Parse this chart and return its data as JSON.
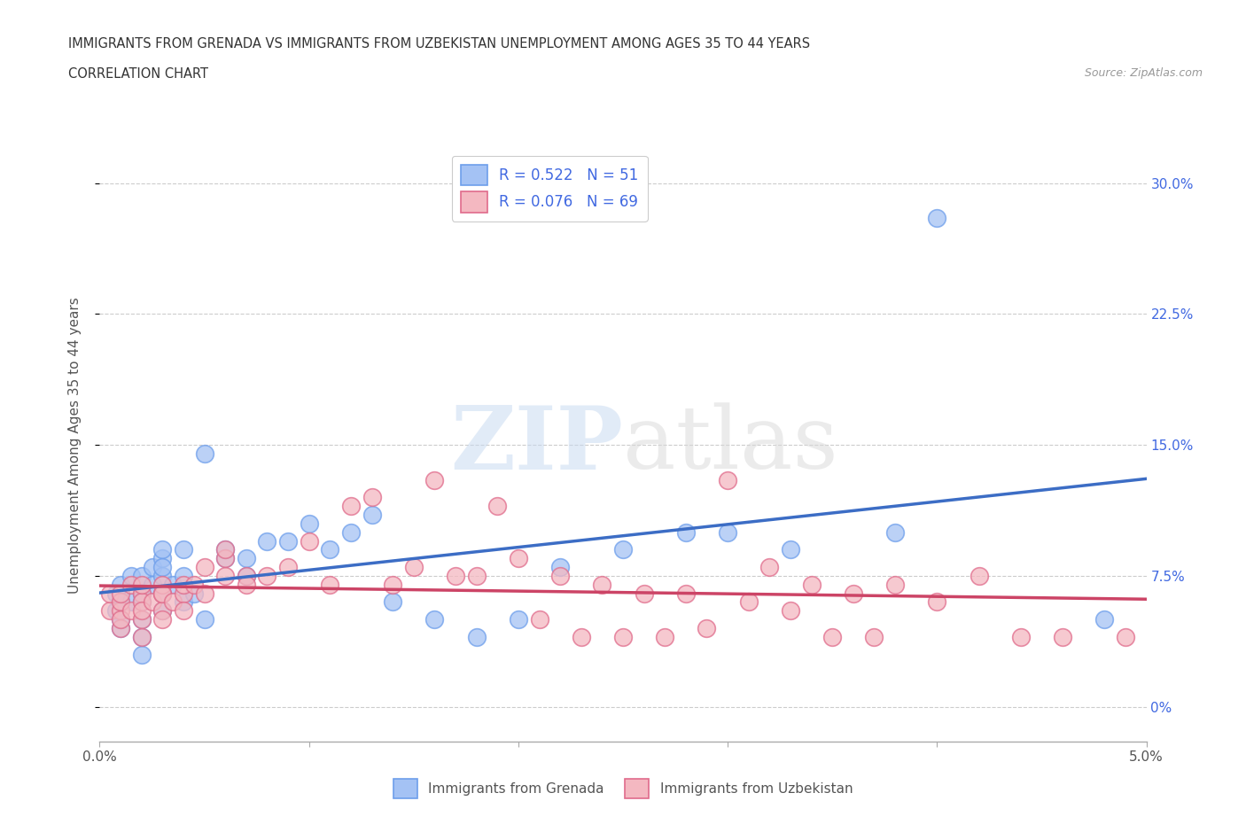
{
  "title_line1": "IMMIGRANTS FROM GRENADA VS IMMIGRANTS FROM UZBEKISTAN UNEMPLOYMENT AMONG AGES 35 TO 44 YEARS",
  "title_line2": "CORRELATION CHART",
  "source_text": "Source: ZipAtlas.com",
  "ylabel": "Unemployment Among Ages 35 to 44 years",
  "xlim": [
    0.0,
    0.05
  ],
  "ylim": [
    -0.02,
    0.32
  ],
  "ytick_vals": [
    0.0,
    0.075,
    0.15,
    0.225,
    0.3
  ],
  "ytick_labels_right": [
    "0%",
    "7.5%",
    "15.0%",
    "22.5%",
    "30.0%"
  ],
  "xtick_vals": [
    0.0,
    0.01,
    0.02,
    0.03,
    0.04,
    0.05
  ],
  "xtick_labels": [
    "0.0%",
    "",
    "",
    "",
    "",
    "5.0%"
  ],
  "grenada_color": "#a4c2f4",
  "uzbekistan_color": "#f4b8c1",
  "grenada_edge_color": "#6d9eeb",
  "uzbekistan_edge_color": "#e06b8b",
  "grenada_line_color": "#3c6dc5",
  "uzbekistan_line_color": "#cc4466",
  "legend_label1": "R = 0.522   N = 51",
  "legend_label2": "R = 0.076   N = 69",
  "watermark": "ZIPatlas",
  "background_color": "#ffffff",
  "grid_color": "#cccccc",
  "axis_color": "#aaaaaa",
  "right_tick_color": "#4169e1",
  "grenada_x": [
    0.0008,
    0.0008,
    0.001,
    0.001,
    0.001,
    0.001,
    0.0015,
    0.0015,
    0.002,
    0.002,
    0.002,
    0.002,
    0.002,
    0.002,
    0.0025,
    0.0025,
    0.003,
    0.003,
    0.003,
    0.003,
    0.003,
    0.003,
    0.0035,
    0.004,
    0.004,
    0.004,
    0.0045,
    0.005,
    0.005,
    0.006,
    0.006,
    0.007,
    0.007,
    0.008,
    0.009,
    0.01,
    0.011,
    0.012,
    0.013,
    0.014,
    0.016,
    0.018,
    0.02,
    0.022,
    0.025,
    0.028,
    0.03,
    0.033,
    0.038,
    0.04,
    0.048
  ],
  "grenada_y": [
    0.055,
    0.065,
    0.07,
    0.06,
    0.045,
    0.05,
    0.075,
    0.06,
    0.065,
    0.075,
    0.05,
    0.06,
    0.04,
    0.03,
    0.08,
    0.07,
    0.085,
    0.075,
    0.065,
    0.055,
    0.09,
    0.08,
    0.07,
    0.075,
    0.09,
    0.06,
    0.065,
    0.145,
    0.05,
    0.085,
    0.09,
    0.075,
    0.085,
    0.095,
    0.095,
    0.105,
    0.09,
    0.1,
    0.11,
    0.06,
    0.05,
    0.04,
    0.05,
    0.08,
    0.09,
    0.1,
    0.1,
    0.09,
    0.1,
    0.28,
    0.05
  ],
  "uzbekistan_x": [
    0.0005,
    0.0005,
    0.001,
    0.001,
    0.001,
    0.001,
    0.001,
    0.0015,
    0.0015,
    0.002,
    0.002,
    0.002,
    0.002,
    0.002,
    0.002,
    0.0025,
    0.003,
    0.003,
    0.003,
    0.003,
    0.003,
    0.0035,
    0.004,
    0.004,
    0.004,
    0.0045,
    0.005,
    0.005,
    0.006,
    0.006,
    0.006,
    0.007,
    0.007,
    0.008,
    0.009,
    0.01,
    0.011,
    0.012,
    0.013,
    0.014,
    0.016,
    0.018,
    0.02,
    0.022,
    0.024,
    0.026,
    0.028,
    0.03,
    0.032,
    0.034,
    0.036,
    0.038,
    0.04,
    0.042,
    0.044,
    0.015,
    0.017,
    0.019,
    0.021,
    0.023,
    0.025,
    0.027,
    0.029,
    0.031,
    0.033,
    0.035,
    0.037,
    0.049,
    0.046
  ],
  "uzbekistan_y": [
    0.055,
    0.065,
    0.055,
    0.06,
    0.045,
    0.05,
    0.065,
    0.07,
    0.055,
    0.065,
    0.05,
    0.06,
    0.04,
    0.055,
    0.07,
    0.06,
    0.065,
    0.055,
    0.07,
    0.065,
    0.05,
    0.06,
    0.065,
    0.055,
    0.07,
    0.07,
    0.08,
    0.065,
    0.075,
    0.085,
    0.09,
    0.075,
    0.07,
    0.075,
    0.08,
    0.095,
    0.07,
    0.115,
    0.12,
    0.07,
    0.13,
    0.075,
    0.085,
    0.075,
    0.07,
    0.065,
    0.065,
    0.13,
    0.08,
    0.07,
    0.065,
    0.07,
    0.06,
    0.075,
    0.04,
    0.08,
    0.075,
    0.115,
    0.05,
    0.04,
    0.04,
    0.04,
    0.045,
    0.06,
    0.055,
    0.04,
    0.04,
    0.04,
    0.04
  ]
}
